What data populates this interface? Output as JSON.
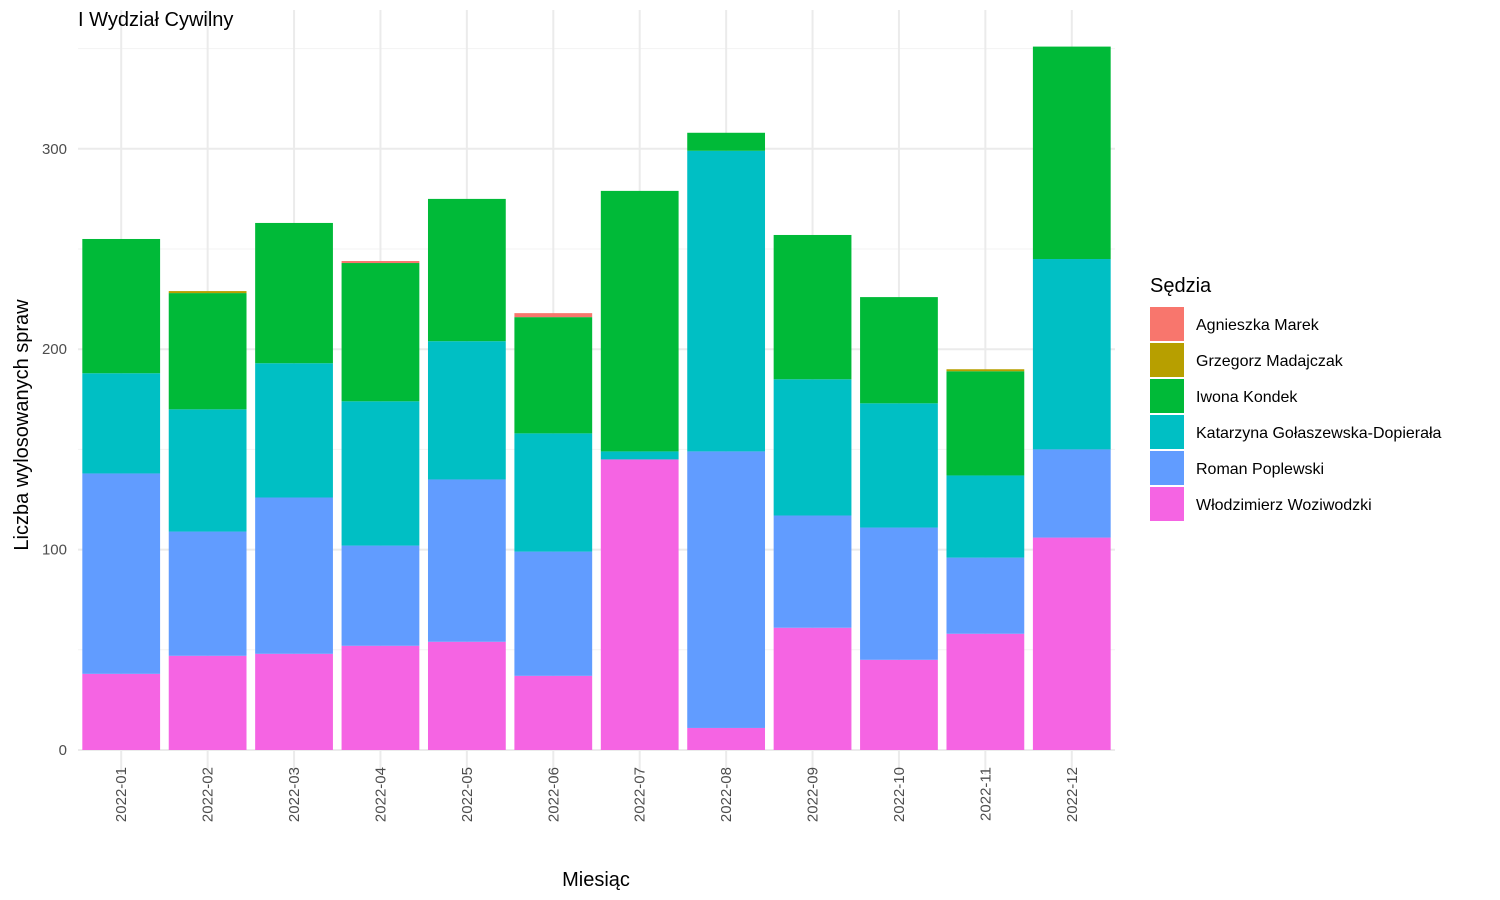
{
  "chart_data": {
    "type": "bar",
    "stacked": true,
    "title": "I Wydział Cywilny",
    "xlabel": "Miesiąc",
    "ylabel": "Liczba wylosowanych spraw",
    "ylim": [
      0,
      350
    ],
    "yticks": [
      0,
      100,
      200,
      300
    ],
    "grid": true,
    "legend": {
      "title": "Sędzia",
      "position": "right"
    },
    "categories": [
      "2022-01",
      "2022-02",
      "2022-03",
      "2022-04",
      "2022-05",
      "2022-06",
      "2022-07",
      "2022-08",
      "2022-09",
      "2022-10",
      "2022-11",
      "2022-12"
    ],
    "series": [
      {
        "name": "Agnieszka Marek",
        "color": "#F8766D",
        "values": [
          0,
          0,
          0,
          1,
          0,
          2,
          0,
          0,
          0,
          0,
          0,
          0
        ]
      },
      {
        "name": "Grzegorz Madajczak",
        "color": "#B79F00",
        "values": [
          0,
          1,
          0,
          0,
          0,
          0,
          0,
          0,
          0,
          0,
          1,
          0
        ]
      },
      {
        "name": "Iwona Kondek",
        "color": "#00BA38",
        "values": [
          67,
          58,
          70,
          69,
          71,
          58,
          130,
          9,
          72,
          53,
          52,
          106
        ]
      },
      {
        "name": "Katarzyna Gołaszewska-Dopierała",
        "color": "#00BFC4",
        "values": [
          50,
          61,
          67,
          72,
          69,
          59,
          4,
          150,
          68,
          62,
          41,
          95
        ]
      },
      {
        "name": "Roman Poplewski",
        "color": "#619CFF",
        "values": [
          100,
          62,
          78,
          50,
          81,
          62,
          0,
          138,
          56,
          66,
          38,
          44
        ]
      },
      {
        "name": "Włodzimierz Woziwodzki",
        "color": "#F564E3",
        "values": [
          38,
          47,
          48,
          52,
          54,
          37,
          145,
          11,
          61,
          45,
          58,
          106
        ]
      }
    ]
  }
}
